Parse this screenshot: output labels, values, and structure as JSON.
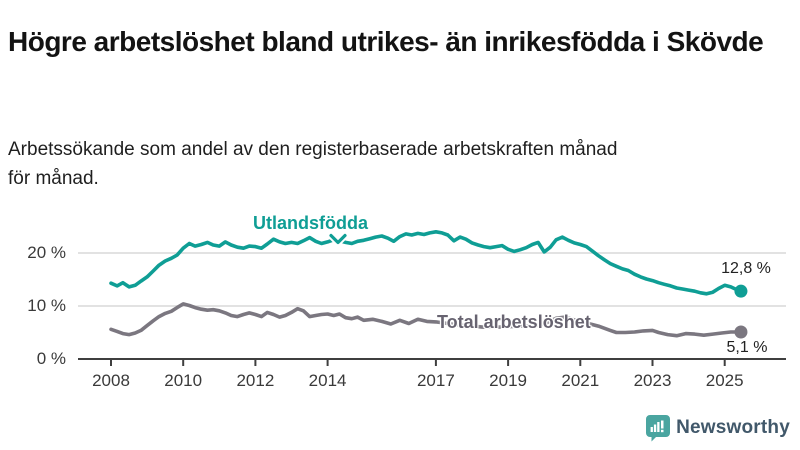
{
  "header": {
    "title": "Högre arbetslöshet bland utrikes- än inrikesfödda i Skövde",
    "subtitle_line1": "Arbetssökande som andel av den registerbaserade arbetskraften månad",
    "subtitle_line2": "för månad."
  },
  "colors": {
    "foreign_born_line": "#0f9e95",
    "total_line": "#7b7780",
    "total_label": "#676370",
    "gridline": "#d9d9d9",
    "axis": "#3f3f3f",
    "logo_icon": "#4aa5a0",
    "logo_text": "#41586a"
  },
  "chart_data": {
    "type": "line",
    "title": "Högre arbetslöshet bland utrikes- än inrikesfödda i Skövde",
    "subtitle": "Arbetssökande som andel av den registerbaserade arbetskraften månad för månad.",
    "xlabel": "",
    "ylabel": "",
    "yunit": "%",
    "ylim": [
      0,
      26
    ],
    "xlim": [
      2007.5,
      2026.2
    ],
    "grid": true,
    "legend_position": "inline-labels",
    "y_ticks": [
      {
        "value": 0,
        "label": "0 %"
      },
      {
        "value": 10,
        "label": "10 %"
      },
      {
        "value": 20,
        "label": "20 %"
      }
    ],
    "x_ticks": [
      {
        "year": 2008,
        "label": "2008"
      },
      {
        "year": 2010,
        "label": "2010"
      },
      {
        "year": 2012,
        "label": "2012"
      },
      {
        "year": 2014,
        "label": "2014"
      },
      {
        "year": 2017,
        "label": "2017"
      },
      {
        "year": 2019,
        "label": "2019"
      },
      {
        "year": 2021,
        "label": "2021"
      },
      {
        "year": 2023,
        "label": "2023"
      },
      {
        "year": 2025,
        "label": "2025"
      }
    ],
    "series": [
      {
        "name": "Utlandsfödda",
        "color": "#0f9e95",
        "end_label": "12,8 %",
        "end_value": 12.8,
        "points": [
          [
            2008.0,
            14.3
          ],
          [
            2008.17,
            13.8
          ],
          [
            2008.33,
            14.4
          ],
          [
            2008.5,
            13.6
          ],
          [
            2008.67,
            13.9
          ],
          [
            2008.83,
            14.7
          ],
          [
            2009.0,
            15.5
          ],
          [
            2009.17,
            16.6
          ],
          [
            2009.33,
            17.7
          ],
          [
            2009.5,
            18.5
          ],
          [
            2009.67,
            19.0
          ],
          [
            2009.83,
            19.6
          ],
          [
            2010.0,
            20.9
          ],
          [
            2010.17,
            21.8
          ],
          [
            2010.33,
            21.3
          ],
          [
            2010.5,
            21.6
          ],
          [
            2010.67,
            22.0
          ],
          [
            2010.83,
            21.5
          ],
          [
            2011.0,
            21.3
          ],
          [
            2011.17,
            22.1
          ],
          [
            2011.33,
            21.5
          ],
          [
            2011.5,
            21.1
          ],
          [
            2011.67,
            20.9
          ],
          [
            2011.83,
            21.3
          ],
          [
            2012.0,
            21.2
          ],
          [
            2012.17,
            20.9
          ],
          [
            2012.33,
            21.7
          ],
          [
            2012.5,
            22.6
          ],
          [
            2012.67,
            22.1
          ],
          [
            2012.83,
            21.8
          ],
          [
            2013.0,
            22.0
          ],
          [
            2013.17,
            21.8
          ],
          [
            2013.33,
            22.3
          ],
          [
            2013.5,
            22.9
          ],
          [
            2013.67,
            22.2
          ],
          [
            2013.83,
            21.8
          ],
          [
            2014.0,
            22.1
          ],
          [
            2014.17,
            22.5
          ],
          [
            2014.33,
            22.3
          ],
          [
            2014.5,
            22.0
          ],
          [
            2014.67,
            21.8
          ],
          [
            2014.83,
            22.2
          ],
          [
            2015.0,
            22.4
          ],
          [
            2015.17,
            22.7
          ],
          [
            2015.33,
            23.0
          ],
          [
            2015.5,
            23.2
          ],
          [
            2015.67,
            22.8
          ],
          [
            2015.83,
            22.2
          ],
          [
            2016.0,
            23.1
          ],
          [
            2016.17,
            23.6
          ],
          [
            2016.33,
            23.4
          ],
          [
            2016.5,
            23.7
          ],
          [
            2016.67,
            23.5
          ],
          [
            2016.83,
            23.8
          ],
          [
            2017.0,
            24.0
          ],
          [
            2017.17,
            23.8
          ],
          [
            2017.33,
            23.4
          ],
          [
            2017.5,
            22.3
          ],
          [
            2017.67,
            23.0
          ],
          [
            2017.83,
            22.6
          ],
          [
            2018.0,
            21.9
          ],
          [
            2018.17,
            21.5
          ],
          [
            2018.33,
            21.2
          ],
          [
            2018.5,
            21.0
          ],
          [
            2018.67,
            21.2
          ],
          [
            2018.83,
            21.4
          ],
          [
            2019.0,
            20.7
          ],
          [
            2019.17,
            20.3
          ],
          [
            2019.33,
            20.6
          ],
          [
            2019.5,
            21.0
          ],
          [
            2019.67,
            21.6
          ],
          [
            2019.83,
            22.0
          ],
          [
            2020.0,
            20.2
          ],
          [
            2020.17,
            21.1
          ],
          [
            2020.33,
            22.5
          ],
          [
            2020.5,
            23.0
          ],
          [
            2020.67,
            22.4
          ],
          [
            2020.83,
            21.9
          ],
          [
            2021.0,
            21.6
          ],
          [
            2021.17,
            21.2
          ],
          [
            2021.33,
            20.4
          ],
          [
            2021.5,
            19.5
          ],
          [
            2021.67,
            18.7
          ],
          [
            2021.83,
            18.0
          ],
          [
            2022.0,
            17.5
          ],
          [
            2022.17,
            17.0
          ],
          [
            2022.33,
            16.7
          ],
          [
            2022.5,
            16.0
          ],
          [
            2022.67,
            15.5
          ],
          [
            2022.83,
            15.1
          ],
          [
            2023.0,
            14.8
          ],
          [
            2023.17,
            14.4
          ],
          [
            2023.33,
            14.1
          ],
          [
            2023.5,
            13.8
          ],
          [
            2023.67,
            13.4
          ],
          [
            2023.83,
            13.2
          ],
          [
            2024.0,
            13.0
          ],
          [
            2024.17,
            12.8
          ],
          [
            2024.33,
            12.5
          ],
          [
            2024.5,
            12.3
          ],
          [
            2024.67,
            12.6
          ],
          [
            2024.83,
            13.3
          ],
          [
            2025.0,
            13.9
          ],
          [
            2025.17,
            13.6
          ],
          [
            2025.33,
            13.1
          ],
          [
            2025.45,
            12.8
          ]
        ]
      },
      {
        "name": "Total arbetslöshet",
        "color": "#7b7780",
        "end_label": "5,1 %",
        "end_value": 5.1,
        "points": [
          [
            2008.0,
            5.6
          ],
          [
            2008.17,
            5.2
          ],
          [
            2008.33,
            4.8
          ],
          [
            2008.5,
            4.6
          ],
          [
            2008.67,
            4.9
          ],
          [
            2008.83,
            5.4
          ],
          [
            2009.0,
            6.3
          ],
          [
            2009.17,
            7.2
          ],
          [
            2009.33,
            8.0
          ],
          [
            2009.5,
            8.6
          ],
          [
            2009.67,
            9.0
          ],
          [
            2009.83,
            9.7
          ],
          [
            2010.0,
            10.4
          ],
          [
            2010.17,
            10.1
          ],
          [
            2010.33,
            9.7
          ],
          [
            2010.5,
            9.4
          ],
          [
            2010.67,
            9.2
          ],
          [
            2010.83,
            9.3
          ],
          [
            2011.0,
            9.1
          ],
          [
            2011.17,
            8.7
          ],
          [
            2011.33,
            8.2
          ],
          [
            2011.5,
            8.0
          ],
          [
            2011.67,
            8.4
          ],
          [
            2011.83,
            8.7
          ],
          [
            2012.0,
            8.4
          ],
          [
            2012.17,
            8.0
          ],
          [
            2012.33,
            8.8
          ],
          [
            2012.5,
            8.4
          ],
          [
            2012.67,
            7.9
          ],
          [
            2012.83,
            8.2
          ],
          [
            2013.0,
            8.8
          ],
          [
            2013.17,
            9.5
          ],
          [
            2013.33,
            9.1
          ],
          [
            2013.5,
            8.0
          ],
          [
            2013.67,
            8.2
          ],
          [
            2013.83,
            8.4
          ],
          [
            2014.0,
            8.5
          ],
          [
            2014.17,
            8.2
          ],
          [
            2014.33,
            8.5
          ],
          [
            2014.5,
            7.8
          ],
          [
            2014.67,
            7.6
          ],
          [
            2014.83,
            7.9
          ],
          [
            2015.0,
            7.3
          ],
          [
            2015.25,
            7.5
          ],
          [
            2015.5,
            7.1
          ],
          [
            2015.75,
            6.6
          ],
          [
            2016.0,
            7.3
          ],
          [
            2016.25,
            6.7
          ],
          [
            2016.5,
            7.5
          ],
          [
            2016.75,
            7.1
          ],
          [
            2017.0,
            7.0
          ],
          [
            2017.33,
            6.7
          ],
          [
            2017.67,
            6.4
          ],
          [
            2018.0,
            6.2
          ],
          [
            2018.33,
            6.0
          ],
          [
            2018.67,
            6.0
          ],
          [
            2019.0,
            6.1
          ],
          [
            2019.33,
            6.2
          ],
          [
            2019.67,
            6.2
          ],
          [
            2020.0,
            6.6
          ],
          [
            2020.33,
            7.7
          ],
          [
            2020.58,
            7.9
          ],
          [
            2020.83,
            7.4
          ],
          [
            2021.17,
            6.8
          ],
          [
            2021.5,
            6.2
          ],
          [
            2021.83,
            5.4
          ],
          [
            2022.0,
            5.0
          ],
          [
            2022.25,
            5.0
          ],
          [
            2022.5,
            5.1
          ],
          [
            2022.75,
            5.3
          ],
          [
            2023.0,
            5.4
          ],
          [
            2023.17,
            5.0
          ],
          [
            2023.42,
            4.6
          ],
          [
            2023.67,
            4.4
          ],
          [
            2023.92,
            4.8
          ],
          [
            2024.17,
            4.7
          ],
          [
            2024.42,
            4.5
          ],
          [
            2024.67,
            4.7
          ],
          [
            2024.92,
            4.9
          ],
          [
            2025.17,
            5.1
          ],
          [
            2025.45,
            5.1
          ]
        ]
      }
    ]
  },
  "logo": {
    "text": "Newsworthy"
  }
}
